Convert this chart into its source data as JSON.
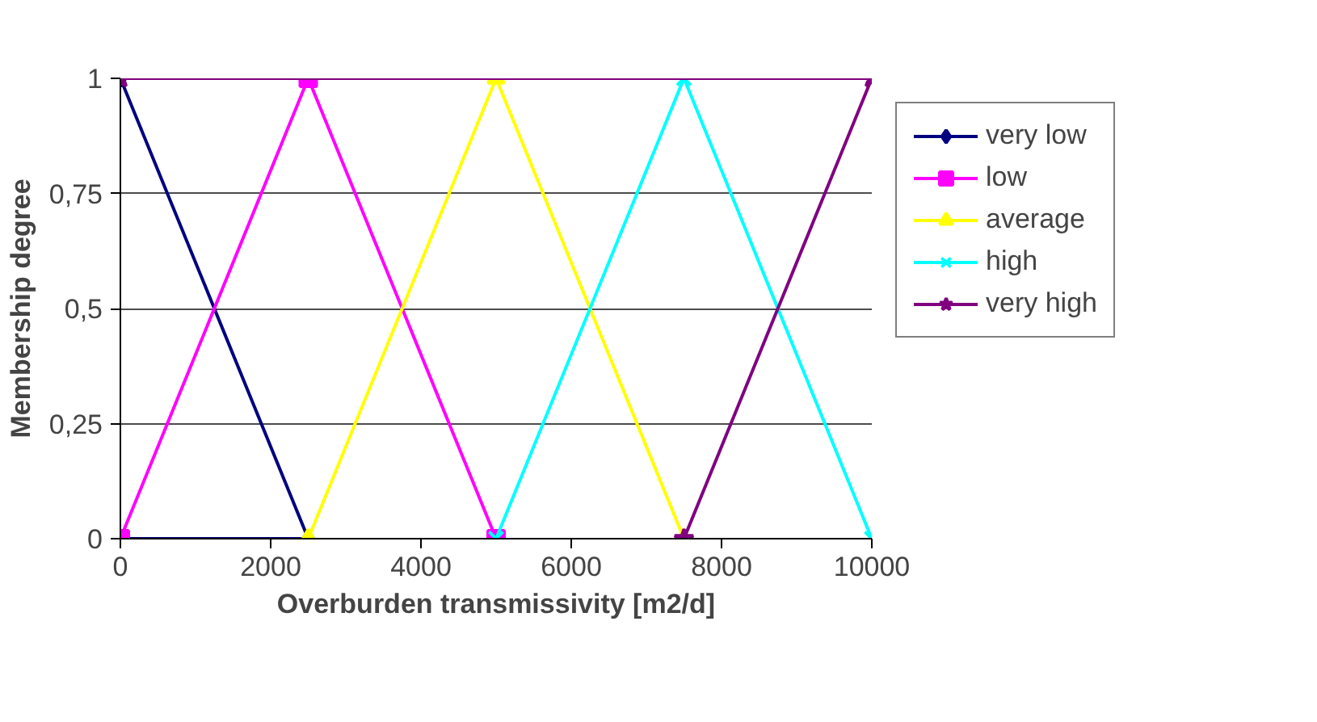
{
  "chart_data": {
    "type": "line",
    "xlabel": "Overburden transmissivity [m2/d]",
    "ylabel": "Membership degree",
    "xlim": [
      0,
      10000
    ],
    "xticks": [
      0,
      2000,
      4000,
      6000,
      8000,
      10000
    ],
    "ylim": [
      0,
      1
    ],
    "yticks": [
      0,
      {
        "value": 0.25,
        "label": "0,25"
      },
      {
        "value": 0.5,
        "label": "0,5"
      },
      {
        "value": 0.75,
        "label": "0,75"
      },
      1
    ],
    "grid": "y",
    "legend": "right",
    "series": [
      {
        "name": "very low",
        "color": "#000080",
        "marker": "diamond",
        "x": [
          0,
          2500,
          0
        ],
        "values": [
          1,
          0,
          0
        ]
      },
      {
        "name": "low",
        "color": "#ff00ff",
        "marker": "square",
        "x": [
          0,
          2500,
          5000
        ],
        "values": [
          0,
          1,
          0
        ]
      },
      {
        "name": "average",
        "color": "#ffff00",
        "marker": "triangle",
        "x": [
          2500,
          5000,
          7500
        ],
        "values": [
          0,
          1,
          0
        ]
      },
      {
        "name": "high",
        "color": "#00ffff",
        "marker": "cross",
        "x": [
          5000,
          7500,
          10000
        ],
        "values": [
          0,
          1,
          0
        ]
      },
      {
        "name": "very high",
        "color": "#800080",
        "marker": "star",
        "x": [
          7500,
          10000,
          0
        ],
        "values": [
          0,
          1,
          1
        ]
      }
    ]
  }
}
